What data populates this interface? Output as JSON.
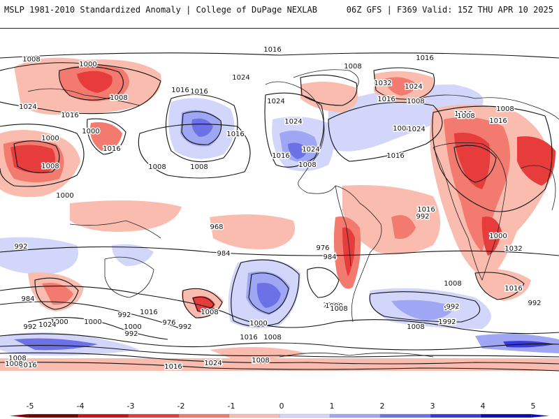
{
  "header": {
    "left_title": "MSLP 1981-2010 Standardized Anomaly | College of DuPage NEXLAB",
    "right_title": "06Z GFS | F369 Valid: 15Z THU APR 10 2025"
  },
  "colorbar": {
    "ticks": [
      "-5",
      "-4",
      "-3",
      "-2",
      "-1",
      "0",
      "1",
      "2",
      "3",
      "4",
      "5"
    ],
    "colors": [
      "#7a0000",
      "#c81414",
      "#e63c3c",
      "#f27a6e",
      "#fbbcb0",
      "#ffffff",
      "#d2d6fb",
      "#9fa6f3",
      "#6c72e6",
      "#3a3ad8",
      "#0c0cb0"
    ]
  },
  "isobar_labels": [
    {
      "text": "1016"
    },
    {
      "text": "1008"
    },
    {
      "text": "1000"
    },
    {
      "text": "1024"
    },
    {
      "text": "1016"
    },
    {
      "text": "1008"
    },
    {
      "text": "1032"
    },
    {
      "text": "1024"
    },
    {
      "text": "1016"
    },
    {
      "text": "1024"
    },
    {
      "text": "1016"
    },
    {
      "text": "1008"
    },
    {
      "text": "1000"
    },
    {
      "text": "1016"
    },
    {
      "text": "1024"
    },
    {
      "text": "1016"
    },
    {
      "text": "1008"
    },
    {
      "text": "1000"
    },
    {
      "text": "1016"
    },
    {
      "text": "1024"
    },
    {
      "text": "1024"
    },
    {
      "text": "1016"
    },
    {
      "text": "1008"
    },
    {
      "text": "1000"
    },
    {
      "text": "1008"
    },
    {
      "text": "1008"
    },
    {
      "text": "1016"
    },
    {
      "text": "1008"
    },
    {
      "text": "1008"
    },
    {
      "text": "1016"
    },
    {
      "text": "1008"
    },
    {
      "text": "1016"
    },
    {
      "text": "1024"
    },
    {
      "text": "1016"
    },
    {
      "text": "1008"
    },
    {
      "text": "1016"
    },
    {
      "text": "992"
    },
    {
      "text": "968"
    },
    {
      "text": "976"
    },
    {
      "text": "984"
    },
    {
      "text": "1000"
    },
    {
      "text": "1032"
    },
    {
      "text": "992"
    },
    {
      "text": "1008"
    },
    {
      "text": "1016"
    },
    {
      "text": "984"
    },
    {
      "text": "984"
    },
    {
      "text": "992"
    },
    {
      "text": "992"
    },
    {
      "text": "1000"
    },
    {
      "text": "1016"
    },
    {
      "text": "1008"
    },
    {
      "text": "1016"
    },
    {
      "text": "992"
    },
    {
      "text": "984"
    },
    {
      "text": "992"
    },
    {
      "text": "1000"
    },
    {
      "text": "992"
    },
    {
      "text": "1024"
    },
    {
      "text": "1000"
    },
    {
      "text": "1000"
    },
    {
      "text": "992"
    },
    {
      "text": "976"
    },
    {
      "text": "1000"
    },
    {
      "text": "1008"
    },
    {
      "text": "1016"
    },
    {
      "text": "992"
    },
    {
      "text": "1000"
    },
    {
      "text": "1008"
    },
    {
      "text": "1016"
    },
    {
      "text": "1008"
    },
    {
      "text": "1008"
    },
    {
      "text": "1016"
    },
    {
      "text": "1024"
    },
    {
      "text": "1008"
    },
    {
      "text": "1016"
    },
    {
      "text": "1008"
    }
  ]
}
